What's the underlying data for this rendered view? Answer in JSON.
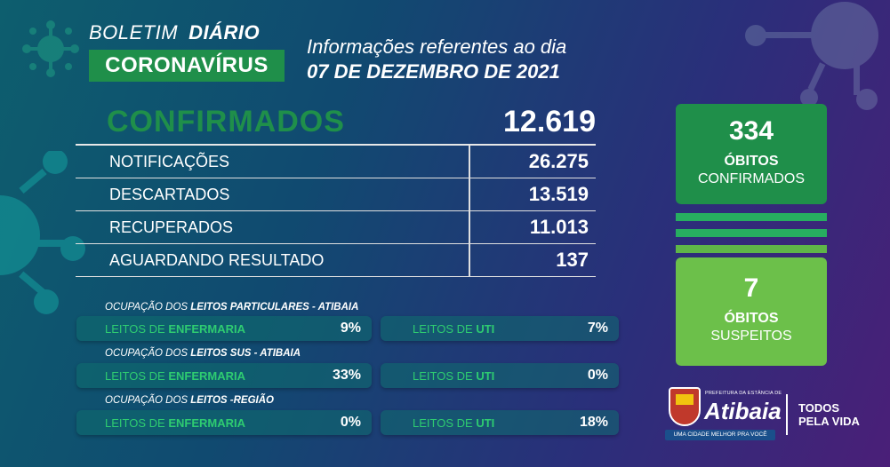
{
  "header": {
    "boletim": "BOLETIM",
    "diario": "DIÁRIO",
    "coronavirus": "CORONAVÍRUS",
    "info_line": "Informações referentes ao dia",
    "date_line": "07 DE DEZEMBRO DE 2021"
  },
  "confirmados": {
    "label": "CONFIRMADOS",
    "value": "12.619"
  },
  "stats": [
    {
      "label": "NOTIFICAÇÕES",
      "value": "26.275"
    },
    {
      "label": "DESCARTADOS",
      "value": "13.519"
    },
    {
      "label": "RECUPERADOS",
      "value": "11.013"
    },
    {
      "label": "AGUARDANDO RESULTADO",
      "value": "137"
    }
  ],
  "ocupacao": [
    {
      "title_prefix": "OCUPAÇÃO DOS",
      "title_bold": "LEITOS PARTICULARES - ATIBAIA",
      "left": {
        "prefix": "LEITOS DE",
        "bold": "ENFERMARIA",
        "value": "9%"
      },
      "right": {
        "prefix": "LEITOS DE",
        "bold": "UTI",
        "value": "7%"
      }
    },
    {
      "title_prefix": "OCUPAÇÃO DOS",
      "title_bold": "LEITOS SUS - ATIBAIA",
      "left": {
        "prefix": "LEITOS DE",
        "bold": "ENFERMARIA",
        "value": "33%"
      },
      "right": {
        "prefix": "LEITOS DE",
        "bold": "UTI",
        "value": "0%"
      }
    },
    {
      "title_prefix": "OCUPAÇÃO DOS",
      "title_bold": "LEITOS -REGIÃO",
      "left": {
        "prefix": "LEITOS DE",
        "bold": "ENFERMARIA",
        "value": "0%"
      },
      "right": {
        "prefix": "LEITOS DE",
        "bold": "UTI",
        "value": "18%"
      }
    }
  ],
  "obitos_confirmados": {
    "value": "334",
    "line1": "ÓBITOS",
    "line2": "CONFIRMADOS"
  },
  "obitos_suspeitos": {
    "value": "7",
    "line1": "ÓBITOS",
    "line2": "SUSPEITOS"
  },
  "logo": {
    "pref_small": "PREFEITURA DA ESTÂNCIA DE",
    "name": "Atibaia",
    "slogan": "UMA CIDADE MELHOR PRA VOCÊ",
    "tag_line1": "TODOS",
    "tag_line2": "PELA VIDA"
  },
  "colors": {
    "green": "#1f8f4a",
    "light_green": "#6cc04a",
    "accent_text": "#2ecc71"
  }
}
